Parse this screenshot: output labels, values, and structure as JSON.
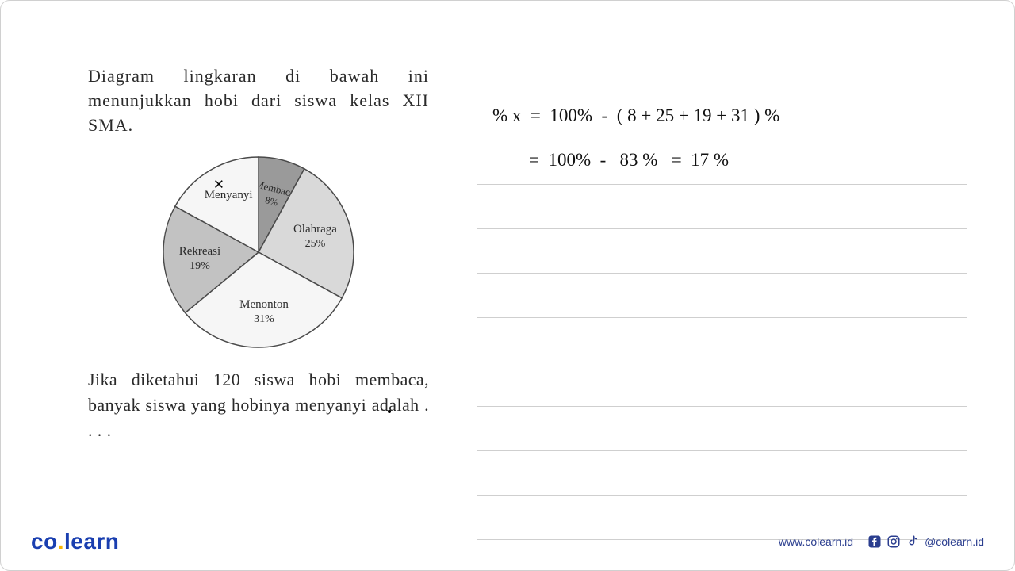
{
  "intro": "Diagram lingkaran di bawah ini menunjukkan hobi dari siswa kelas XII SMA.",
  "question": "Jika diketahui 120 siswa hobi membaca, banyak siswa yang hobinya menyanyi adalah . . . .",
  "pie": {
    "type": "pie",
    "background_color": "#ffffff",
    "outline_color": "#4a4a4a",
    "outline_width": 1.5,
    "slices": [
      {
        "label": "Membaca",
        "percent_label": "8%",
        "value": 8,
        "color": "#9a9a9a",
        "label_rotated": true
      },
      {
        "label": "Olahraga",
        "percent_label": "25%",
        "value": 25,
        "color": "#d9d9d9"
      },
      {
        "label": "Menonton",
        "percent_label": "31%",
        "value": 31,
        "color": "#f6f6f6"
      },
      {
        "label": "Rekreasi",
        "percent_label": "19%",
        "value": 19,
        "color": "#c2c2c2"
      },
      {
        "label": "Menyanyi",
        "percent_label": "",
        "value": 17,
        "color": "#f6f6f6",
        "marker": "×"
      }
    ],
    "start_angle_deg": -90,
    "label_fontsize": 15,
    "percent_fontsize": 14
  },
  "handwriting": {
    "line1": "% x  =  100%  -  ( 8 + 25 + 19 + 31 ) %",
    "line2": "        =  100%  -   83 %   =  17 %",
    "font_family": "Comic Sans MS",
    "font_size": 23,
    "text_color": "#111111",
    "rule_color": "#cfcfcf",
    "blank_lines": 8
  },
  "footer": {
    "logo_text_1": "co",
    "logo_dot": ".",
    "logo_text_2": "learn",
    "logo_color": "#1a3fb0",
    "logo_dot_color": "#f7b500",
    "site": "www.colearn.id",
    "handle": "@colearn.id",
    "icon_color": "#2b3e8f"
  }
}
